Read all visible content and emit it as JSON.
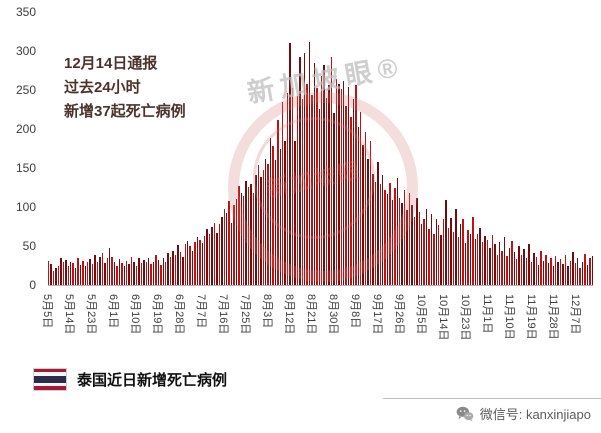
{
  "annotation": {
    "line1": "12月14日通报",
    "line2": "过去24小时",
    "line3": "新增37起死亡病例"
  },
  "watermark": {
    "diagonal_text": "新加坡眼®",
    "seal_text": "新加坡眼"
  },
  "footer": {
    "title": "泰国近日新增死亡病例",
    "wechat": "微信号: kanxinjiapo"
  },
  "chart_data": {
    "type": "bar",
    "title": "泰国近日新增死亡病例",
    "ylabel": "",
    "xlabel": "",
    "ylim": [
      0,
      350
    ],
    "yticks": [
      0,
      50,
      100,
      150,
      200,
      250,
      300,
      350
    ],
    "grid": false,
    "legend": false,
    "x_start": "5月5日",
    "x_end": "12月14日",
    "x_tick_every_days": 9,
    "x_tick_labels": [
      "5月5日",
      "5月14日",
      "5月23日",
      "6月1日",
      "6月10日",
      "6月19日",
      "6月28日",
      "7月7日",
      "7月16日",
      "7月25日",
      "8月3日",
      "8月12日",
      "8月21日",
      "8月30日",
      "9月8日",
      "9月17日",
      "9月26日",
      "10月5日",
      "10月14日",
      "10月23日",
      "11月1日",
      "11月10日",
      "11月19日",
      "11月28日",
      "12月7日"
    ],
    "bar_colors": [
      "#c01212",
      "#720d0d"
    ],
    "annotation_value_dec14": 37,
    "values": [
      31,
      27,
      18,
      22,
      24,
      34,
      29,
      32,
      25,
      30,
      28,
      22,
      35,
      26,
      31,
      24,
      29,
      33,
      27,
      38,
      30,
      36,
      41,
      28,
      34,
      47,
      36,
      29,
      25,
      33,
      28,
      24,
      31,
      27,
      36,
      30,
      25,
      34,
      28,
      32,
      29,
      35,
      27,
      30,
      38,
      32,
      26,
      35,
      30,
      41,
      36,
      44,
      38,
      51,
      42,
      36,
      53,
      57,
      50,
      44,
      55,
      62,
      58,
      54,
      63,
      72,
      66,
      75,
      80,
      67,
      78,
      87,
      98,
      92,
      108,
      80,
      102,
      110,
      127,
      118,
      114,
      133,
      126,
      130,
      118,
      141,
      154,
      138,
      148,
      162,
      155,
      188,
      178,
      160,
      212,
      175,
      235,
      185,
      246,
      310,
      253,
      184,
      242,
      292,
      239,
      298,
      258,
      311,
      244,
      285,
      252,
      226,
      268,
      282,
      240,
      256,
      292,
      220,
      264,
      258,
      251,
      262,
      230,
      254,
      216,
      238,
      257,
      202,
      222,
      180,
      196,
      161,
      184,
      142,
      132,
      158,
      129,
      141,
      122,
      117,
      131,
      109,
      125,
      137,
      112,
      105,
      122,
      96,
      118,
      102,
      87,
      111,
      94,
      78,
      84,
      98,
      72,
      91,
      66,
      85,
      77,
      64,
      84,
      109,
      73,
      86,
      68,
      97,
      62,
      78,
      84,
      54,
      71,
      65,
      87,
      59,
      66,
      73,
      55,
      63,
      58,
      47,
      64,
      52,
      39,
      55,
      44,
      61,
      37,
      48,
      56,
      42,
      33,
      50,
      39,
      46,
      35,
      52,
      30,
      41,
      36,
      26,
      44,
      31,
      38,
      28,
      34,
      24,
      37,
      29,
      33,
      27,
      38,
      24,
      31,
      42,
      28,
      35,
      22,
      30,
      40,
      26,
      34,
      37
    ]
  }
}
